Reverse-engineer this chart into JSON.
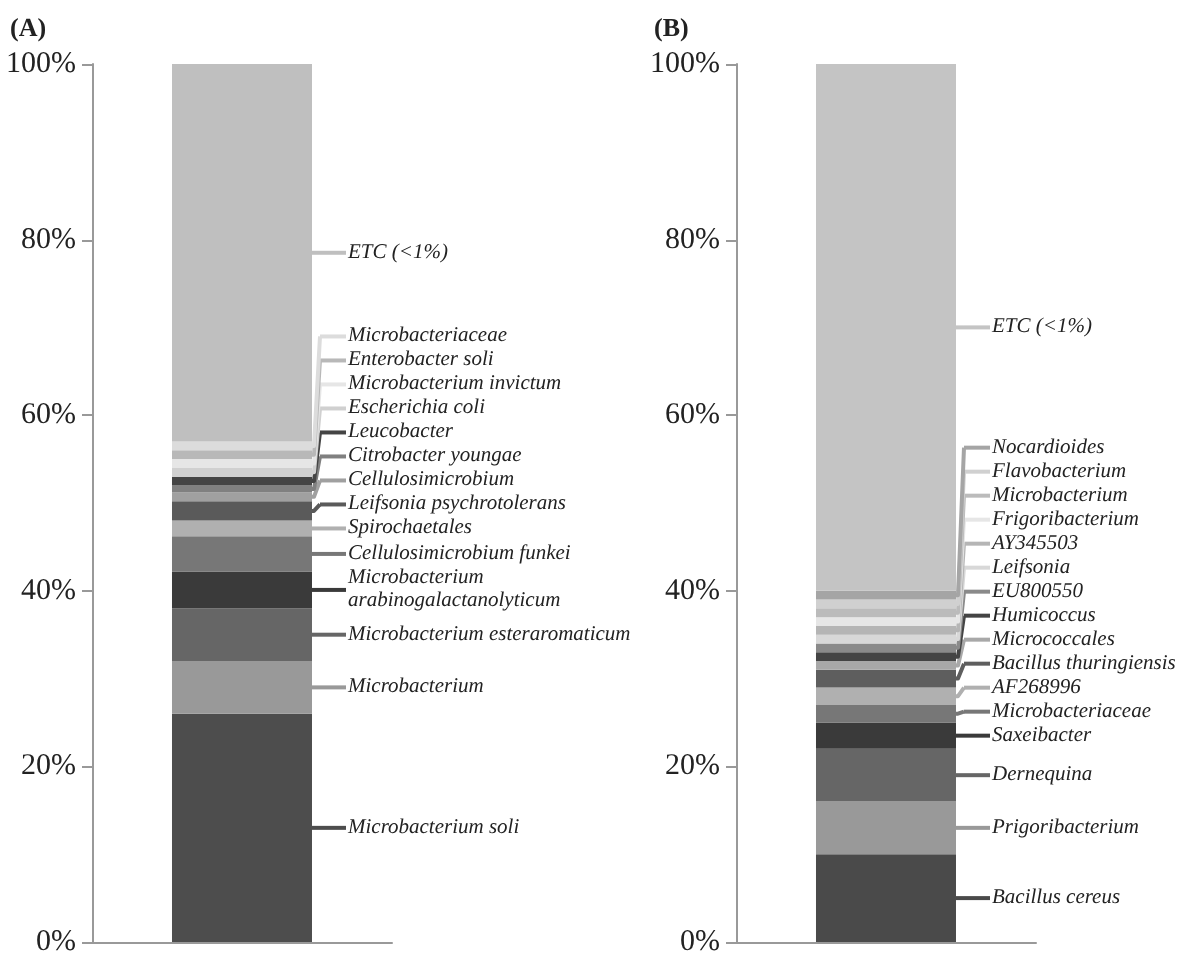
{
  "chart_data": [
    {
      "type": "bar",
      "title": "(A)",
      "stacked": true,
      "categories": [
        null
      ],
      "legend": "right",
      "grid": false,
      "ylim": [
        0,
        100
      ],
      "yticks": [
        {
          "value": 0,
          "label": "0%"
        },
        {
          "value": 20,
          "label": "20%"
        },
        {
          "value": 40,
          "label": "40%"
        },
        {
          "value": 60,
          "label": "60%"
        },
        {
          "value": 80,
          "label": "80%"
        },
        {
          "value": 100,
          "label": "100%"
        }
      ],
      "series": [
        {
          "name": "Microbacterium soli",
          "color": "#4d4d4d",
          "values": [
            26
          ]
        },
        {
          "name": "Microbacterium",
          "color": "#999999",
          "values": [
            6
          ]
        },
        {
          "name": "Microbacterium esteraromaticum",
          "color": "#666666",
          "values": [
            6
          ]
        },
        {
          "name": "Microbacterium arabinogalactanolyticum",
          "color": "#3a3a3a",
          "values": [
            4.2
          ]
        },
        {
          "name": "Cellulosimicrobium funkei",
          "color": "#777777",
          "values": [
            4
          ]
        },
        {
          "name": "Spirochaetales",
          "color": "#b0b0b0",
          "values": [
            1.8
          ]
        },
        {
          "name": "Leifsonia psychrotolerans",
          "color": "#5a5a5a",
          "values": [
            2.2
          ]
        },
        {
          "name": "Cellulosimicrobium",
          "color": "#a0a0a0",
          "values": [
            1
          ]
        },
        {
          "name": "Citrobacter youngae",
          "color": "#808080",
          "values": [
            0.8
          ]
        },
        {
          "name": "Leucobacter",
          "color": "#444444",
          "values": [
            1
          ]
        },
        {
          "name": "Escherichia coli",
          "color": "#d0d0d0",
          "values": [
            1
          ]
        },
        {
          "name": "Microbacterium invictum",
          "color": "#e6e6e6",
          "values": [
            1
          ]
        },
        {
          "name": "Enterobacter soli",
          "color": "#b8b8b8",
          "values": [
            1
          ]
        },
        {
          "name": "Microbacteriaceae",
          "color": "#dcdcdc",
          "values": [
            1
          ]
        },
        {
          "name": "ETC (<1%)",
          "color": "#bfbfbf",
          "values": [
            43
          ]
        }
      ]
    },
    {
      "type": "bar",
      "title": "(B)",
      "stacked": true,
      "categories": [
        null
      ],
      "legend": "right",
      "grid": false,
      "ylim": [
        0,
        100
      ],
      "yticks": [
        {
          "value": 0,
          "label": "0%"
        },
        {
          "value": 20,
          "label": "20%"
        },
        {
          "value": 40,
          "label": "40%"
        },
        {
          "value": 60,
          "label": "60%"
        },
        {
          "value": 80,
          "label": "80%"
        },
        {
          "value": 100,
          "label": "100%"
        }
      ],
      "series": [
        {
          "name": "Bacillus cereus",
          "color": "#4a4a4a",
          "values": [
            10
          ]
        },
        {
          "name": "Prigoribacterium",
          "color": "#999999",
          "values": [
            6
          ]
        },
        {
          "name": "Dernequina",
          "color": "#666666",
          "values": [
            6
          ]
        },
        {
          "name": "Saxeibacter",
          "color": "#3a3a3a",
          "values": [
            3
          ]
        },
        {
          "name": "Microbacteriaceae",
          "color": "#777777",
          "values": [
            2
          ]
        },
        {
          "name": "AF268996",
          "color": "#b0b0b0",
          "values": [
            2
          ]
        },
        {
          "name": "Bacillus thuringiensis",
          "color": "#5e5e5e",
          "values": [
            2
          ]
        },
        {
          "name": "Micrococcales",
          "color": "#a8a8a8",
          "values": [
            1
          ]
        },
        {
          "name": "Humicoccus",
          "color": "#444444",
          "values": [
            1
          ]
        },
        {
          "name": "EU800550",
          "color": "#8a8a8a",
          "values": [
            1
          ]
        },
        {
          "name": "Leifsonia",
          "color": "#d8d8d8",
          "values": [
            1
          ]
        },
        {
          "name": "AY345503",
          "color": "#b5b5b5",
          "values": [
            1
          ]
        },
        {
          "name": "Frigoribacterium",
          "color": "#e6e6e6",
          "values": [
            1
          ]
        },
        {
          "name": "Microbacterium",
          "color": "#bbbbbb",
          "values": [
            1
          ]
        },
        {
          "name": "Flavobacterium",
          "color": "#d0d0d0",
          "values": [
            1
          ]
        },
        {
          "name": "Nocardioides",
          "color": "#a5a5a5",
          "values": [
            1
          ]
        },
        {
          "name": "ETC (<1%)",
          "color": "#c4c4c4",
          "values": [
            60
          ]
        }
      ]
    }
  ]
}
